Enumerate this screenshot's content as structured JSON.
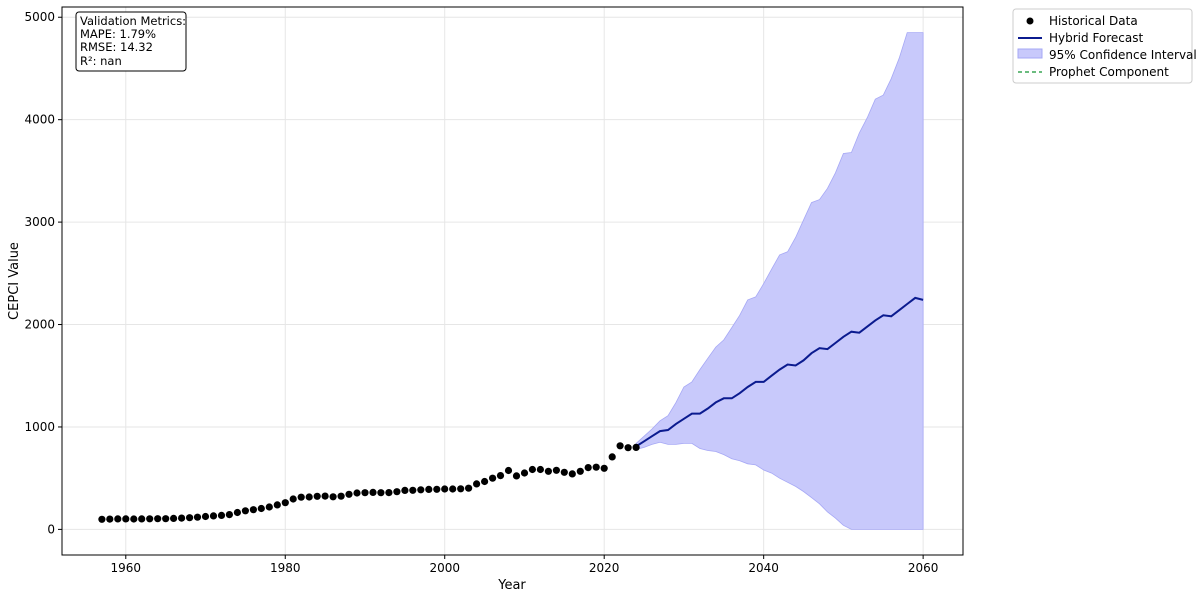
{
  "chart_data": {
    "type": "line",
    "xlabel": "Year",
    "ylabel": "CEPCI Value",
    "xlim": [
      1952,
      2065
    ],
    "ylim": [
      -250,
      5100
    ],
    "xticks": [
      1960,
      1980,
      2000,
      2020,
      2040,
      2060
    ],
    "yticks": [
      0,
      1000,
      2000,
      3000,
      4000,
      5000
    ],
    "grid": true,
    "legend_placement": "outside-top-right",
    "colors": {
      "historical": "#000000",
      "forecast": "#0b1b8f",
      "confidence_fill": "#c8c9fb",
      "confidence_edge": "#a6a8f5",
      "prophet": "#3aa655"
    },
    "metrics_box": {
      "lines": [
        "Validation Metrics:",
        "MAPE: 1.79%",
        "RMSE: 14.32",
        "R²: nan"
      ]
    },
    "series": [
      {
        "name": "Historical Data",
        "style": "scatter",
        "x": [
          1957,
          1958,
          1959,
          1960,
          1961,
          1962,
          1963,
          1964,
          1965,
          1966,
          1967,
          1968,
          1969,
          1970,
          1971,
          1972,
          1973,
          1974,
          1975,
          1976,
          1977,
          1978,
          1979,
          1980,
          1981,
          1982,
          1983,
          1984,
          1985,
          1986,
          1987,
          1988,
          1989,
          1990,
          1991,
          1992,
          1993,
          1994,
          1995,
          1996,
          1997,
          1998,
          1999,
          2000,
          2001,
          2002,
          2003,
          2004,
          2005,
          2006,
          2007,
          2008,
          2009,
          2010,
          2011,
          2012,
          2013,
          2014,
          2015,
          2016,
          2017,
          2018,
          2019,
          2020,
          2021,
          2022,
          2023,
          2024
        ],
        "y": [
          99,
          100,
          102,
          102,
          101,
          102,
          103,
          104,
          104,
          107,
          110,
          114,
          119,
          126,
          132,
          137,
          144,
          165,
          182,
          192,
          204,
          219,
          239,
          261,
          297,
          314,
          316,
          323,
          325,
          318,
          324,
          343,
          355,
          358,
          361,
          358,
          359,
          368,
          381,
          382,
          387,
          390,
          391,
          394,
          394,
          396,
          402,
          444,
          468,
          500,
          525,
          575,
          522,
          551,
          585,
          585,
          567,
          577,
          557,
          542,
          567,
          603,
          607,
          596,
          708,
          816,
          798,
          800
        ]
      },
      {
        "name": "Hybrid Forecast",
        "style": "line",
        "x": [
          2024,
          2025,
          2026,
          2027,
          2028,
          2029,
          2030,
          2031,
          2032,
          2033,
          2034,
          2035,
          2036,
          2037,
          2038,
          2039,
          2040,
          2041,
          2042,
          2043,
          2044,
          2045,
          2046,
          2047,
          2048,
          2049,
          2050,
          2051,
          2052,
          2053,
          2054,
          2055,
          2056,
          2057,
          2058,
          2059,
          2060
        ],
        "y": [
          810,
          860,
          910,
          960,
          970,
          1030,
          1080,
          1130,
          1130,
          1180,
          1240,
          1280,
          1280,
          1330,
          1390,
          1440,
          1440,
          1500,
          1560,
          1610,
          1600,
          1650,
          1720,
          1770,
          1760,
          1820,
          1880,
          1930,
          1920,
          1980,
          2040,
          2090,
          2080,
          2140,
          2200,
          2260,
          2240
        ]
      },
      {
        "name": "95% Confidence Interval",
        "style": "band",
        "x": [
          2024,
          2025,
          2026,
          2027,
          2028,
          2029,
          2030,
          2031,
          2032,
          2033,
          2034,
          2035,
          2036,
          2037,
          2038,
          2039,
          2040,
          2041,
          2042,
          2043,
          2044,
          2045,
          2046,
          2047,
          2048,
          2049,
          2050,
          2051,
          2052,
          2053,
          2054,
          2055,
          2056,
          2057,
          2058,
          2059,
          2060
        ],
        "lower": [
          780,
          800,
          830,
          850,
          830,
          830,
          840,
          840,
          790,
          770,
          760,
          730,
          690,
          670,
          640,
          630,
          580,
          550,
          500,
          460,
          420,
          370,
          310,
          250,
          170,
          110,
          40,
          0,
          0,
          0,
          0,
          0,
          0,
          0,
          0,
          0,
          0
        ],
        "upper": [
          840,
          910,
          980,
          1060,
          1110,
          1240,
          1390,
          1440,
          1560,
          1670,
          1780,
          1850,
          1970,
          2090,
          2240,
          2270,
          2400,
          2540,
          2680,
          2710,
          2850,
          3020,
          3190,
          3220,
          3330,
          3480,
          3670,
          3680,
          3870,
          4020,
          4200,
          4240,
          4400,
          4600,
          4850,
          4850,
          4850
        ]
      },
      {
        "name": "Prophet Component",
        "style": "dashed-line",
        "x": [],
        "y": []
      }
    ]
  }
}
